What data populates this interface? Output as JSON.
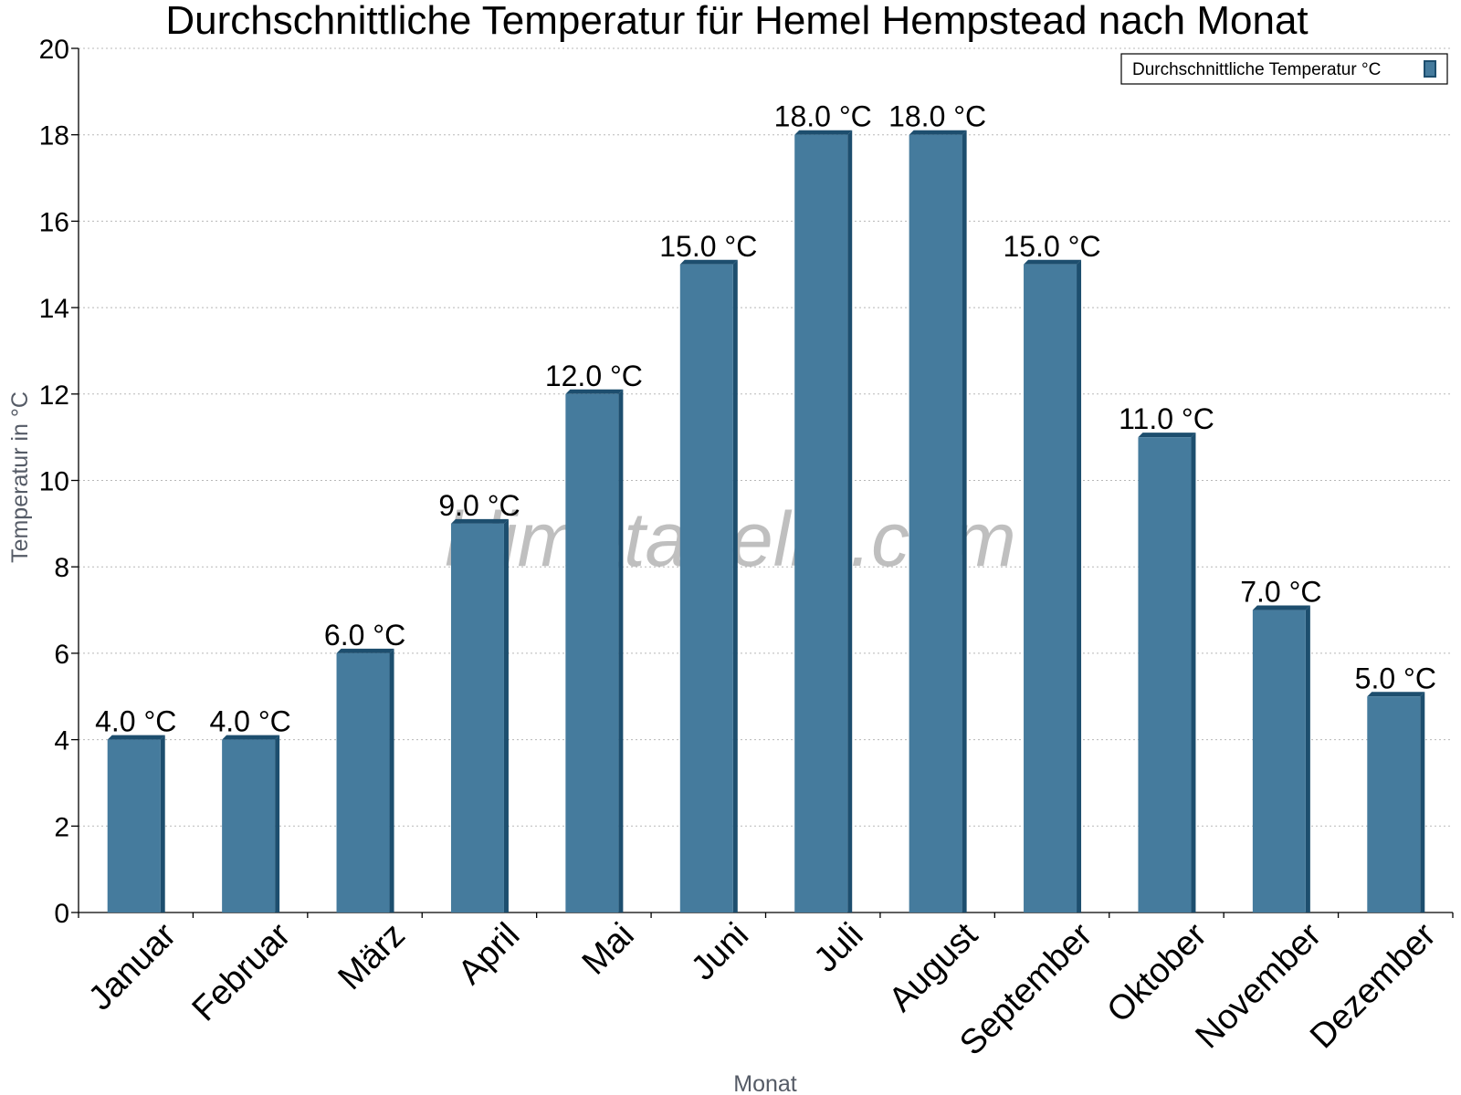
{
  "chart_data": {
    "type": "bar",
    "title": "Durchschnittliche Temperatur für Hemel Hempstead nach Monat",
    "xlabel": "Monat",
    "ylabel": "Temperatur in °C",
    "ylim": [
      0,
      20
    ],
    "yticks": [
      0,
      2,
      4,
      6,
      8,
      10,
      12,
      14,
      16,
      18,
      20
    ],
    "grid": true,
    "legend_position": "top-right",
    "categories": [
      "Januar",
      "Februar",
      "März",
      "April",
      "Mai",
      "Juni",
      "Juli",
      "August",
      "September",
      "Oktober",
      "November",
      "Dezember"
    ],
    "series": [
      {
        "name": "Durchschnittliche Temperatur °C",
        "values": [
          4.0,
          4.0,
          6.0,
          9.0,
          12.0,
          15.0,
          18.0,
          18.0,
          15.0,
          11.0,
          7.0,
          5.0
        ],
        "labels": [
          "4.0 °C",
          "4.0 °C",
          "6.0 °C",
          "9.0 °C",
          "12.0 °C",
          "15.0 °C",
          "18.0 °C",
          "18.0 °C",
          "15.0 °C",
          "11.0 °C",
          "7.0 °C",
          "5.0 °C"
        ],
        "color": "#457b9d",
        "edge_color": "#1d4e6e"
      }
    ],
    "watermark": "klimatabelle.com"
  }
}
